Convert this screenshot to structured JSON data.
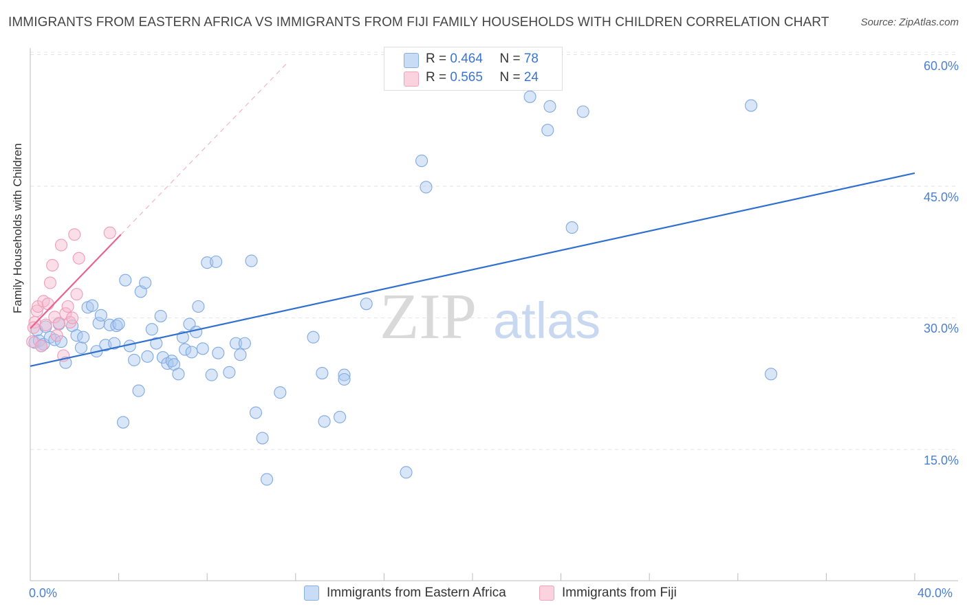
{
  "title": "IMMIGRANTS FROM EASTERN AFRICA VS IMMIGRANTS FROM FIJI FAMILY HOUSEHOLDS WITH CHILDREN CORRELATION CHART",
  "source": "Source: ZipAtlas.com",
  "watermark": {
    "zip": "ZIP",
    "atlas": "atlas"
  },
  "legend_top": {
    "rows": [
      {
        "r_label": "R = ",
        "r_value": "0.464",
        "n_label": "N = ",
        "n_value": "78",
        "color": "#a9c8f0"
      },
      {
        "r_label": "R = ",
        "r_value": "0.565",
        "n_label": "N = ",
        "n_value": "24",
        "color": "#f7b9cb"
      }
    ]
  },
  "legend_bottom": [
    {
      "label": "Immigrants from Eastern Africa",
      "color": "#a9c8f0"
    },
    {
      "label": "Immigrants from Fiji",
      "color": "#f7b9cb"
    }
  ],
  "chart_data": {
    "type": "scatter",
    "title": "IMMIGRANTS FROM EASTERN AFRICA VS IMMIGRANTS FROM FIJI FAMILY HOUSEHOLDS WITH CHILDREN CORRELATION CHART",
    "xlabel": "",
    "ylabel": "Family Households with Children",
    "xlim": [
      0,
      40
    ],
    "ylim": [
      0,
      62
    ],
    "x_tick_labels": [
      "0.0%",
      "40.0%"
    ],
    "y_ticks": [
      15,
      30,
      45,
      60
    ],
    "y_tick_labels": [
      "15.0%",
      "30.0%",
      "45.0%",
      "60.0%"
    ],
    "grid": true,
    "legend_position": "top-center",
    "series": [
      {
        "name": "Immigrants from Eastern Africa",
        "color": "#7fa9e3",
        "trend": {
          "x": [
            0,
            40
          ],
          "y": [
            24.5,
            46.5
          ],
          "color": "#2f6fd0"
        },
        "points": [
          [
            0.2,
            27.2
          ],
          [
            0.3,
            28.6
          ],
          [
            0.4,
            27.4
          ],
          [
            0.6,
            27.0
          ],
          [
            0.7,
            29.0
          ],
          [
            0.9,
            27.8
          ],
          [
            1.1,
            27.5
          ],
          [
            1.3,
            29.3
          ],
          [
            1.6,
            24.9
          ],
          [
            1.9,
            29.1
          ],
          [
            2.1,
            28.0
          ],
          [
            2.3,
            26.6
          ],
          [
            2.4,
            27.8
          ],
          [
            2.6,
            31.2
          ],
          [
            2.8,
            31.4
          ],
          [
            3.0,
            26.2
          ],
          [
            3.1,
            29.4
          ],
          [
            3.2,
            30.3
          ],
          [
            3.4,
            26.9
          ],
          [
            3.6,
            29.2
          ],
          [
            3.8,
            27.1
          ],
          [
            3.9,
            29.1
          ],
          [
            4.0,
            29.3
          ],
          [
            4.2,
            18.1
          ],
          [
            4.3,
            34.3
          ],
          [
            4.5,
            26.8
          ],
          [
            4.7,
            25.2
          ],
          [
            4.9,
            21.7
          ],
          [
            5.0,
            33.0
          ],
          [
            5.2,
            34.0
          ],
          [
            5.3,
            25.6
          ],
          [
            5.5,
            28.7
          ],
          [
            5.7,
            27.1
          ],
          [
            5.9,
            30.2
          ],
          [
            6.0,
            25.5
          ],
          [
            6.2,
            24.8
          ],
          [
            6.4,
            25.1
          ],
          [
            6.5,
            24.7
          ],
          [
            6.7,
            23.6
          ],
          [
            6.9,
            27.8
          ],
          [
            7.0,
            26.4
          ],
          [
            7.2,
            29.3
          ],
          [
            7.3,
            26.1
          ],
          [
            7.5,
            28.4
          ],
          [
            7.6,
            31.3
          ],
          [
            7.8,
            26.5
          ],
          [
            8.0,
            36.3
          ],
          [
            8.2,
            23.5
          ],
          [
            8.4,
            36.4
          ],
          [
            8.5,
            26.0
          ],
          [
            9.0,
            23.8
          ],
          [
            9.3,
            27.1
          ],
          [
            9.5,
            25.8
          ],
          [
            9.7,
            27.1
          ],
          [
            10.0,
            36.5
          ],
          [
            10.2,
            19.2
          ],
          [
            10.5,
            16.3
          ],
          [
            10.7,
            11.6
          ],
          [
            11.3,
            21.5
          ],
          [
            12.8,
            27.8
          ],
          [
            13.2,
            23.7
          ],
          [
            13.3,
            18.2
          ],
          [
            14.0,
            18.7
          ],
          [
            14.2,
            23.5
          ],
          [
            14.2,
            23.0
          ],
          [
            15.2,
            31.6
          ],
          [
            17.0,
            12.4
          ],
          [
            17.7,
            47.9
          ],
          [
            17.9,
            44.9
          ],
          [
            22.6,
            55.2
          ],
          [
            23.4,
            51.4
          ],
          [
            23.5,
            54.1
          ],
          [
            24.5,
            40.3
          ],
          [
            25.0,
            53.5
          ],
          [
            32.6,
            54.2
          ],
          [
            33.5,
            23.6
          ],
          [
            0.5,
            26.8
          ],
          [
            1.4,
            27.3
          ]
        ]
      },
      {
        "name": "Immigrants from Fiji",
        "color": "#f29ab6",
        "trend": {
          "x": [
            0,
            4.1
          ],
          "y": [
            28.8,
            39.5
          ],
          "color": "#e8638f"
        },
        "trend_extension": {
          "x": [
            4.1,
            11.6
          ],
          "y": [
            39.5,
            59.0
          ]
        },
        "points": [
          [
            0.1,
            27.3
          ],
          [
            0.2,
            29.5
          ],
          [
            0.3,
            30.8
          ],
          [
            0.35,
            31.3
          ],
          [
            0.5,
            26.8
          ],
          [
            0.6,
            31.9
          ],
          [
            0.7,
            29.2
          ],
          [
            0.8,
            31.6
          ],
          [
            0.9,
            34.0
          ],
          [
            1.0,
            36.0
          ],
          [
            1.1,
            30.1
          ],
          [
            1.2,
            28.0
          ],
          [
            1.3,
            29.4
          ],
          [
            1.4,
            38.3
          ],
          [
            1.5,
            25.7
          ],
          [
            1.6,
            30.5
          ],
          [
            1.7,
            31.3
          ],
          [
            1.8,
            29.5
          ],
          [
            1.9,
            30.0
          ],
          [
            2.0,
            39.5
          ],
          [
            2.1,
            32.7
          ],
          [
            2.2,
            36.8
          ],
          [
            3.6,
            39.7
          ],
          [
            0.15,
            28.9
          ]
        ]
      }
    ]
  }
}
